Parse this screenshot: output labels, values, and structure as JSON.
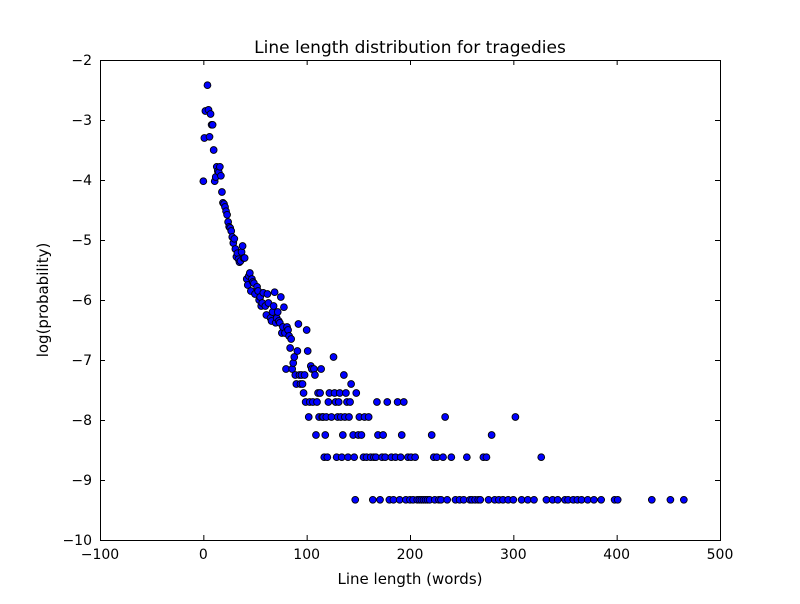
{
  "chart_data": {
    "type": "scatter",
    "title": "Line length distribution for tragedies",
    "xlabel": "Line length (words)",
    "ylabel": "log(probability)",
    "xlim": [
      -100,
      500
    ],
    "ylim": [
      -10,
      -2
    ],
    "xticks": [
      -100,
      0,
      100,
      200,
      300,
      400,
      500
    ],
    "xtick_labels": [
      "−100",
      "0",
      "100",
      "200",
      "300",
      "400",
      "500"
    ],
    "yticks": [
      -10,
      -9,
      -8,
      -7,
      -6,
      -5,
      -4,
      -3,
      -2
    ],
    "ytick_labels": [
      "−10",
      "−9",
      "−8",
      "−7",
      "−6",
      "−5",
      "−4",
      "−3",
      "−2"
    ],
    "grid": false,
    "marker_color": "#0000ff",
    "marker_edge_color": "#000000",
    "points": [
      [
        0,
        -4.02
      ],
      [
        1,
        -3.3
      ],
      [
        2,
        -2.85
      ],
      [
        4,
        -2.42
      ],
      [
        5,
        -2.83
      ],
      [
        6,
        -3.28
      ],
      [
        7,
        -2.9
      ],
      [
        8,
        -3.08
      ],
      [
        9,
        -3.08
      ],
      [
        10,
        -3.5
      ],
      [
        11,
        -4.02
      ],
      [
        12,
        -3.95
      ],
      [
        13,
        -3.78
      ],
      [
        14,
        -3.85
      ],
      [
        15,
        -3.87
      ],
      [
        16,
        -3.78
      ],
      [
        17,
        -3.93
      ],
      [
        18,
        -4.2
      ],
      [
        19,
        -4.38
      ],
      [
        20,
        -4.4
      ],
      [
        21,
        -4.45
      ],
      [
        22,
        -4.52
      ],
      [
        23,
        -4.58
      ],
      [
        24,
        -4.7
      ],
      [
        25,
        -4.78
      ],
      [
        26,
        -4.8
      ],
      [
        27,
        -4.85
      ],
      [
        28,
        -4.95
      ],
      [
        29,
        -5.05
      ],
      [
        30,
        -4.98
      ],
      [
        31,
        -5.15
      ],
      [
        32,
        -5.28
      ],
      [
        33,
        -5.22
      ],
      [
        34,
        -5.32
      ],
      [
        35,
        -5.37
      ],
      [
        36,
        -5.35
      ],
      [
        37,
        -5.2
      ],
      [
        38,
        -5.1
      ],
      [
        39,
        -5.3
      ],
      [
        40,
        -5.3
      ],
      [
        42,
        -5.65
      ],
      [
        43,
        -5.75
      ],
      [
        44,
        -5.6
      ],
      [
        45,
        -5.55
      ],
      [
        46,
        -5.85
      ],
      [
        47,
        -5.65
      ],
      [
        48,
        -5.7
      ],
      [
        49,
        -5.72
      ],
      [
        50,
        -5.9
      ],
      [
        52,
        -5.78
      ],
      [
        53,
        -5.85
      ],
      [
        54,
        -6.0
      ],
      [
        55,
        -5.95
      ],
      [
        56,
        -6.1
      ],
      [
        57,
        -6.05
      ],
      [
        58,
        -5.88
      ],
      [
        60,
        -6.1
      ],
      [
        61,
        -6.25
      ],
      [
        62,
        -5.9
      ],
      [
        63,
        -6.05
      ],
      [
        65,
        -6.3
      ],
      [
        66,
        -6.35
      ],
      [
        67,
        -6.2
      ],
      [
        68,
        -6.1
      ],
      [
        69,
        -5.87
      ],
      [
        70,
        -6.38
      ],
      [
        71,
        -6.3
      ],
      [
        72,
        -6.2
      ],
      [
        73,
        -6.35
      ],
      [
        74,
        -6.38
      ],
      [
        75,
        -5.95
      ],
      [
        76,
        -6.55
      ],
      [
        77,
        -6.45
      ],
      [
        78,
        -6.12
      ],
      [
        79,
        -6.55
      ],
      [
        80,
        -7.15
      ],
      [
        81,
        -6.45
      ],
      [
        82,
        -6.5
      ],
      [
        83,
        -6.6
      ],
      [
        84,
        -6.8
      ],
      [
        85,
        -6.65
      ],
      [
        86,
        -7.15
      ],
      [
        87,
        -7.05
      ],
      [
        88,
        -6.95
      ],
      [
        89,
        -7.25
      ],
      [
        90,
        -7.4
      ],
      [
        91,
        -6.85
      ],
      [
        92,
        -6.4
      ],
      [
        93,
        -7.25
      ],
      [
        94,
        -7.4
      ],
      [
        95,
        -7.25
      ],
      [
        96,
        -7.4
      ],
      [
        97,
        -7.55
      ],
      [
        98,
        -7.25
      ],
      [
        99,
        -7.7
      ],
      [
        100,
        -6.5
      ],
      [
        101,
        -6.85
      ],
      [
        102,
        -7.95
      ],
      [
        103,
        -7.7
      ],
      [
        104,
        -7.1
      ],
      [
        105,
        -7.15
      ],
      [
        106,
        -7.7
      ],
      [
        107,
        -7.15
      ],
      [
        108,
        -7.25
      ],
      [
        109,
        -8.25
      ],
      [
        110,
        -7.7
      ],
      [
        111,
        -7.55
      ],
      [
        112,
        -7.95
      ],
      [
        113,
        -7.55
      ],
      [
        114,
        -7.15
      ],
      [
        115,
        -7.95
      ],
      [
        116,
        -7.95
      ],
      [
        117,
        -8.62
      ],
      [
        118,
        -8.25
      ],
      [
        119,
        -7.95
      ],
      [
        120,
        -8.62
      ],
      [
        121,
        -7.7
      ],
      [
        122,
        -7.55
      ],
      [
        124,
        -7.95
      ],
      [
        126,
        -6.95
      ],
      [
        127,
        -7.55
      ],
      [
        128,
        -7.7
      ],
      [
        129,
        -8.62
      ],
      [
        130,
        -7.95
      ],
      [
        131,
        -7.7
      ],
      [
        132,
        -7.55
      ],
      [
        133,
        -7.95
      ],
      [
        134,
        -8.62
      ],
      [
        135,
        -8.25
      ],
      [
        136,
        -7.25
      ],
      [
        137,
        -7.95
      ],
      [
        138,
        -7.55
      ],
      [
        139,
        -7.7
      ],
      [
        140,
        -8.62
      ],
      [
        141,
        -7.95
      ],
      [
        142,
        -7.7
      ],
      [
        143,
        -7.4
      ],
      [
        145,
        -8.25
      ],
      [
        146,
        -8.62
      ],
      [
        147,
        -9.33
      ],
      [
        148,
        -7.55
      ],
      [
        150,
        -8.25
      ],
      [
        151,
        -7.95
      ],
      [
        153,
        -8.25
      ],
      [
        155,
        -8.62
      ],
      [
        156,
        -7.95
      ],
      [
        158,
        -8.62
      ],
      [
        160,
        -7.95
      ],
      [
        162,
        -8.62
      ],
      [
        164,
        -9.33
      ],
      [
        165,
        -8.62
      ],
      [
        167,
        -8.62
      ],
      [
        168,
        -7.7
      ],
      [
        169,
        -8.25
      ],
      [
        171,
        -9.33
      ],
      [
        173,
        -8.62
      ],
      [
        174,
        -8.25
      ],
      [
        176,
        -8.62
      ],
      [
        178,
        -7.7
      ],
      [
        180,
        -9.33
      ],
      [
        182,
        -8.62
      ],
      [
        184,
        -9.33
      ],
      [
        186,
        -8.62
      ],
      [
        188,
        -7.7
      ],
      [
        190,
        -9.33
      ],
      [
        191,
        -8.62
      ],
      [
        192,
        -8.25
      ],
      [
        194,
        -7.7
      ],
      [
        196,
        -9.33
      ],
      [
        198,
        -8.62
      ],
      [
        200,
        -9.33
      ],
      [
        201,
        -8.62
      ],
      [
        203,
        -9.33
      ],
      [
        205,
        -8.62
      ],
      [
        207,
        -9.33
      ],
      [
        209,
        -9.33
      ],
      [
        211,
        -9.33
      ],
      [
        213,
        -9.33
      ],
      [
        215,
        -9.33
      ],
      [
        217,
        -9.33
      ],
      [
        219,
        -9.33
      ],
      [
        221,
        -8.25
      ],
      [
        223,
        -8.62
      ],
      [
        224,
        -9.33
      ],
      [
        226,
        -8.62
      ],
      [
        228,
        -9.33
      ],
      [
        230,
        -9.33
      ],
      [
        232,
        -8.62
      ],
      [
        234,
        -7.95
      ],
      [
        236,
        -9.33
      ],
      [
        240,
        -8.62
      ],
      [
        244,
        -9.33
      ],
      [
        248,
        -9.33
      ],
      [
        252,
        -9.33
      ],
      [
        255,
        -8.62
      ],
      [
        258,
        -9.33
      ],
      [
        260,
        -9.33
      ],
      [
        263,
        -9.33
      ],
      [
        266,
        -9.33
      ],
      [
        268,
        -9.33
      ],
      [
        271,
        -8.62
      ],
      [
        274,
        -8.62
      ],
      [
        276,
        -9.33
      ],
      [
        279,
        -8.25
      ],
      [
        282,
        -9.33
      ],
      [
        286,
        -9.33
      ],
      [
        290,
        -9.33
      ],
      [
        295,
        -9.33
      ],
      [
        300,
        -9.33
      ],
      [
        302,
        -7.95
      ],
      [
        308,
        -9.33
      ],
      [
        314,
        -9.33
      ],
      [
        320,
        -9.33
      ],
      [
        327,
        -8.62
      ],
      [
        332,
        -9.33
      ],
      [
        338,
        -9.33
      ],
      [
        343,
        -9.33
      ],
      [
        350,
        -9.33
      ],
      [
        353,
        -9.33
      ],
      [
        358,
        -9.33
      ],
      [
        362,
        -9.33
      ],
      [
        366,
        -9.33
      ],
      [
        372,
        -9.33
      ],
      [
        378,
        -9.33
      ],
      [
        385,
        -9.33
      ],
      [
        398,
        -9.33
      ],
      [
        401,
        -9.33
      ],
      [
        434,
        -9.33
      ],
      [
        452,
        -9.33
      ],
      [
        465,
        -9.33
      ]
    ]
  }
}
